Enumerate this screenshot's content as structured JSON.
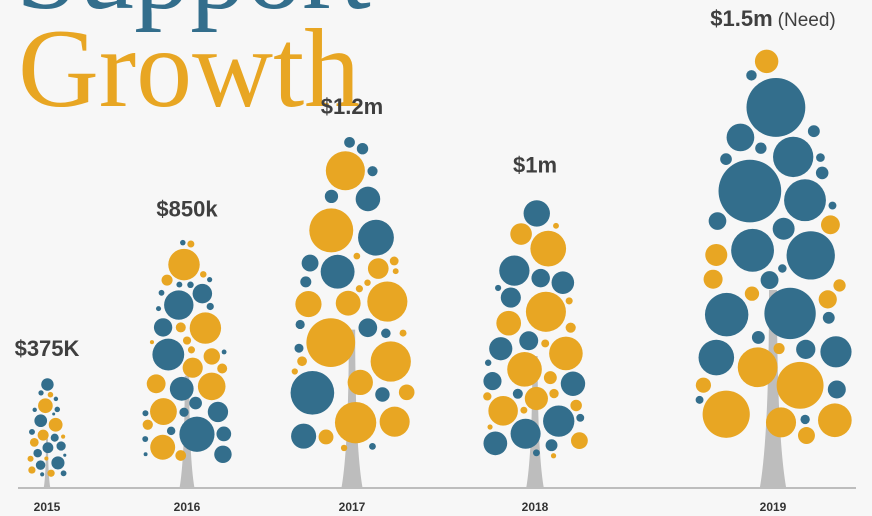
{
  "chart_data": {
    "type": "tree",
    "title_lines": [
      "Support",
      "Growth"
    ],
    "categories": [
      "2015",
      "2016",
      "2017",
      "2018",
      "2019"
    ],
    "values": [
      375000,
      850000,
      1200000,
      1000000,
      1500000
    ],
    "value_labels": [
      "$375K",
      "$850k",
      "$1.2m",
      "$1m",
      "$1.5m"
    ],
    "annotations": [
      {
        "category": "2019",
        "text": "(Need)"
      }
    ],
    "color": "#336e8c",
    "accent_color": "#e8a623",
    "trunk_color": "#bdbdbd"
  }
}
